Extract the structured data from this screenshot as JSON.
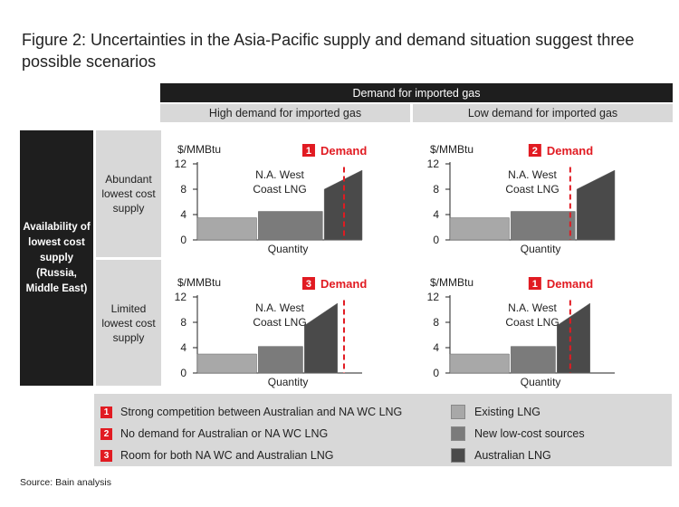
{
  "title": "Figure 2: Uncertainties in the Asia-Pacific supply and demand situation suggest three possible scenarios",
  "columns": {
    "header": "Demand for imported gas",
    "items": [
      "High demand for imported gas",
      "Low demand for imported gas"
    ]
  },
  "rows": {
    "header": "Availability of lowest cost supply (Russia, Middle East)",
    "items": [
      "Abundant lowest cost supply",
      "Limited lowest cost supply"
    ]
  },
  "colors": {
    "existing": "#a8a8a8",
    "new_low_cost": "#7b7b7b",
    "australian": "#4a4a4a",
    "demand_line": "#e11b22",
    "header_dark": "#1e1e1e",
    "header_light": "#d8d8d8"
  },
  "chart_data": [
    {
      "type": "area",
      "row": "Abundant lowest cost supply",
      "column": "High demand for imported gas",
      "ylabel": "$/MMBtu",
      "xlabel": "Quantity",
      "yticks": [
        0,
        4,
        8,
        12
      ],
      "ylim": [
        0,
        12
      ],
      "annotation": "N.A. West Coast LNG",
      "scenario_number": "1",
      "demand_label": "Demand",
      "demand_x": 0.89,
      "segments": [
        {
          "name": "Existing LNG",
          "x_start": 0.0,
          "x_end": 0.36,
          "y_start": 3.5,
          "y_end": 3.5
        },
        {
          "name": "New low-cost sources",
          "x_start": 0.37,
          "x_end": 0.76,
          "y_start": 4.5,
          "y_end": 4.5
        },
        {
          "name": "Australian LNG",
          "x_start": 0.77,
          "x_end": 1.0,
          "y_start": 8,
          "y_end": 11
        }
      ]
    },
    {
      "type": "area",
      "row": "Abundant lowest cost supply",
      "column": "Low demand for imported gas",
      "ylabel": "$/MMBtu",
      "xlabel": "Quantity",
      "yticks": [
        0,
        4,
        8,
        12
      ],
      "ylim": [
        0,
        12
      ],
      "annotation": "N.A. West Coast LNG",
      "scenario_number": "2",
      "demand_label": "Demand",
      "demand_x": 0.73,
      "segments": [
        {
          "name": "Existing LNG",
          "x_start": 0.0,
          "x_end": 0.36,
          "y_start": 3.5,
          "y_end": 3.5
        },
        {
          "name": "New low-cost sources",
          "x_start": 0.37,
          "x_end": 0.76,
          "y_start": 4.5,
          "y_end": 4.5
        },
        {
          "name": "Australian LNG",
          "x_start": 0.77,
          "x_end": 1.0,
          "y_start": 8,
          "y_end": 11
        }
      ]
    },
    {
      "type": "area",
      "row": "Limited lowest cost supply",
      "column": "High demand for imported gas",
      "ylabel": "$/MMBtu",
      "xlabel": "Quantity",
      "yticks": [
        0,
        4,
        8,
        12
      ],
      "ylim": [
        0,
        12
      ],
      "annotation": "N.A. West Coast LNG",
      "scenario_number": "3",
      "demand_label": "Demand",
      "demand_x": 0.89,
      "segments": [
        {
          "name": "Existing LNG",
          "x_start": 0.0,
          "x_end": 0.36,
          "y_start": 3,
          "y_end": 3
        },
        {
          "name": "New low-cost sources",
          "x_start": 0.37,
          "x_end": 0.64,
          "y_start": 4.2,
          "y_end": 4.2
        },
        {
          "name": "Australian LNG",
          "x_start": 0.65,
          "x_end": 0.85,
          "y_start": 7.5,
          "y_end": 11
        }
      ]
    },
    {
      "type": "area",
      "row": "Limited lowest cost supply",
      "column": "Low demand for imported gas",
      "ylabel": "$/MMBtu",
      "xlabel": "Quantity",
      "yticks": [
        0,
        4,
        8,
        12
      ],
      "ylim": [
        0,
        12
      ],
      "annotation": "N.A. West Coast LNG",
      "scenario_number": "1",
      "demand_label": "Demand",
      "demand_x": 0.73,
      "segments": [
        {
          "name": "Existing LNG",
          "x_start": 0.0,
          "x_end": 0.36,
          "y_start": 3,
          "y_end": 3
        },
        {
          "name": "New low-cost sources",
          "x_start": 0.37,
          "x_end": 0.64,
          "y_start": 4.2,
          "y_end": 4.2
        },
        {
          "name": "Australian LNG",
          "x_start": 0.65,
          "x_end": 0.85,
          "y_start": 7.5,
          "y_end": 11
        }
      ]
    }
  ],
  "legend": {
    "scenarios": [
      {
        "number": "1",
        "text": "Strong competition between Australian and NA WC LNG"
      },
      {
        "number": "2",
        "text": "No demand for Australian or NA WC LNG"
      },
      {
        "number": "3",
        "text": "Room for both NA WC and Australian LNG"
      }
    ],
    "supply": [
      {
        "label": "Existing LNG",
        "color": "#a8a8a8"
      },
      {
        "label": "New low-cost sources",
        "color": "#7b7b7b"
      },
      {
        "label": "Australian LNG",
        "color": "#4a4a4a"
      }
    ]
  },
  "source": "Source: Bain analysis"
}
